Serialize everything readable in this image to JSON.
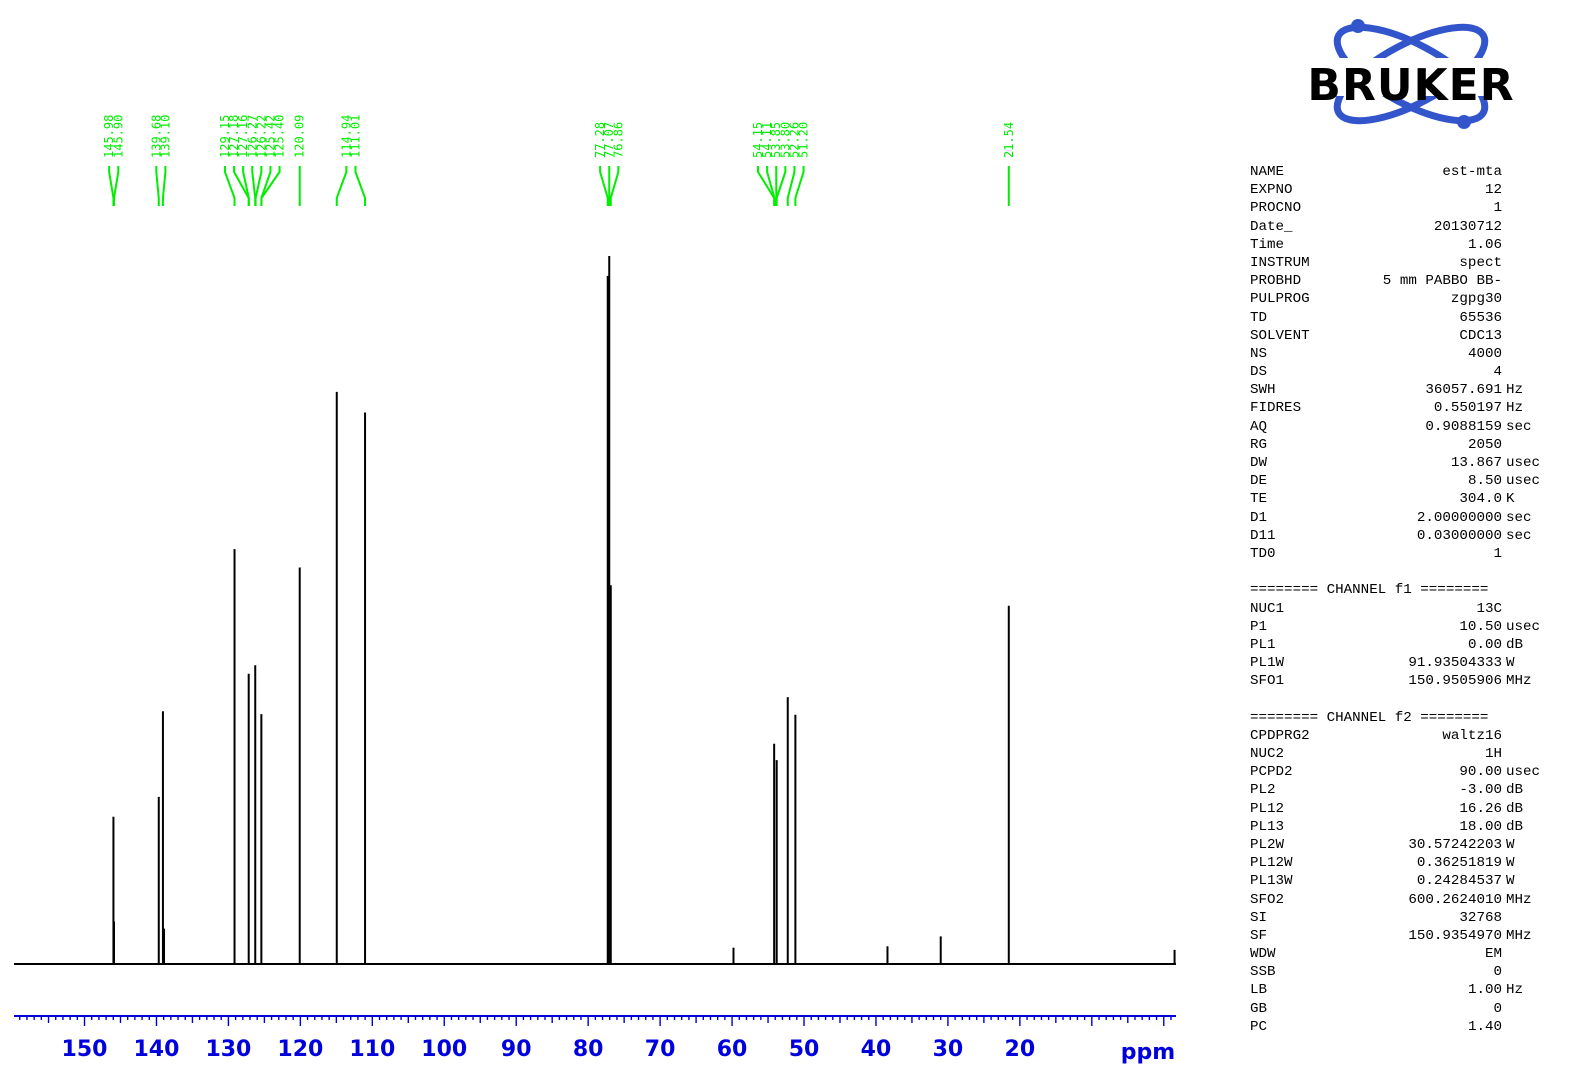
{
  "logo": {
    "text": "BRUKER",
    "colors": {
      "orbit": "#3355cc",
      "text": "#000000"
    },
    "icon": "atom-orbit-logo"
  },
  "parameters": {
    "acquisition": [
      {
        "name": "NAME",
        "value": "est-mta",
        "unit": ""
      },
      {
        "name": "EXPNO",
        "value": "12",
        "unit": ""
      },
      {
        "name": "PROCNO",
        "value": "1",
        "unit": ""
      },
      {
        "name": "Date_",
        "value": "20130712",
        "unit": ""
      },
      {
        "name": "Time",
        "value": "1.06",
        "unit": ""
      },
      {
        "name": "INSTRUM",
        "value": "spect",
        "unit": ""
      },
      {
        "name": "PROBHD",
        "value": "5 mm PABBO BB-",
        "unit": ""
      },
      {
        "name": "PULPROG",
        "value": "zgpg30",
        "unit": ""
      },
      {
        "name": "TD",
        "value": "65536",
        "unit": ""
      },
      {
        "name": "SOLVENT",
        "value": "CDC13",
        "unit": ""
      },
      {
        "name": "NS",
        "value": "4000",
        "unit": ""
      },
      {
        "name": "DS",
        "value": "4",
        "unit": ""
      },
      {
        "name": "SWH",
        "value": "36057.691",
        "unit": "Hz"
      },
      {
        "name": "FIDRES",
        "value": "0.550197",
        "unit": "Hz"
      },
      {
        "name": "AQ",
        "value": "0.9088159",
        "unit": "sec"
      },
      {
        "name": "RG",
        "value": "2050",
        "unit": ""
      },
      {
        "name": "DW",
        "value": "13.867",
        "unit": "usec"
      },
      {
        "name": "DE",
        "value": "8.50",
        "unit": "usec"
      },
      {
        "name": "TE",
        "value": "304.0",
        "unit": "K"
      },
      {
        "name": "D1",
        "value": "2.00000000",
        "unit": "sec"
      },
      {
        "name": "D11",
        "value": "0.03000000",
        "unit": "sec"
      },
      {
        "name": "TD0",
        "value": "1",
        "unit": ""
      }
    ],
    "channel_f1_header": "======== CHANNEL f1 ========",
    "channel_f1": [
      {
        "name": "NUC1",
        "value": "13C",
        "unit": ""
      },
      {
        "name": "P1",
        "value": "10.50",
        "unit": "usec"
      },
      {
        "name": "PL1",
        "value": "0.00",
        "unit": "dB"
      },
      {
        "name": "PL1W",
        "value": "91.93504333",
        "unit": "W"
      },
      {
        "name": "SFO1",
        "value": "150.9505906",
        "unit": "MHz"
      }
    ],
    "channel_f2_header": "======== CHANNEL f2 ========",
    "channel_f2": [
      {
        "name": "CPDPRG2",
        "value": "waltz16",
        "unit": ""
      },
      {
        "name": "NUC2",
        "value": "1H",
        "unit": ""
      },
      {
        "name": "PCPD2",
        "value": "90.00",
        "unit": "usec"
      },
      {
        "name": "PL2",
        "value": "-3.00",
        "unit": "dB"
      },
      {
        "name": "PL12",
        "value": "16.26",
        "unit": "dB"
      },
      {
        "name": "PL13",
        "value": "18.00",
        "unit": "dB"
      },
      {
        "name": "PL2W",
        "value": "30.57242203",
        "unit": "W"
      },
      {
        "name": "PL12W",
        "value": "0.36251819",
        "unit": "W"
      },
      {
        "name": "PL13W",
        "value": "0.24284537",
        "unit": "W"
      },
      {
        "name": "SFO2",
        "value": "600.2624010",
        "unit": "MHz"
      },
      {
        "name": "SI",
        "value": "32768",
        "unit": ""
      },
      {
        "name": "SF",
        "value": "150.9354970",
        "unit": "MHz"
      },
      {
        "name": "WDW",
        "value": "EM",
        "unit": ""
      },
      {
        "name": "SSB",
        "value": "0",
        "unit": ""
      },
      {
        "name": "LB",
        "value": "1.00",
        "unit": "Hz"
      },
      {
        "name": "GB",
        "value": "0",
        "unit": ""
      },
      {
        "name": "PC",
        "value": "1.40",
        "unit": ""
      }
    ]
  },
  "chart_data": {
    "type": "line",
    "xlabel": "ppm",
    "xlim": [
      159.8,
      -1.7
    ],
    "ylim": [
      0,
      100
    ],
    "x_ticks": [
      150,
      140,
      130,
      120,
      110,
      100,
      90,
      80,
      70,
      60,
      50,
      40,
      30,
      20
    ],
    "grid": false,
    "colors": {
      "trace": "#000000",
      "peak_labels": "#00ee00",
      "axis": "#0000dd"
    },
    "peak_labels": [
      "145.98",
      "145.90",
      "139.68",
      "139.10",
      "129.15",
      "127.18",
      "127.16",
      "126.27",
      "126.22",
      "125.42",
      "125.40",
      "120.09",
      "114.94",
      "111.01",
      "77.28",
      "77.07",
      "76.86",
      "54.15",
      "54.11",
      "53.85",
      "53.80",
      "52.26",
      "51.20",
      "21.54"
    ],
    "peaks": [
      {
        "x": 145.98,
        "y": 20.8
      },
      {
        "x": 145.9,
        "y": 6.0
      },
      {
        "x": 139.68,
        "y": 23.6
      },
      {
        "x": 139.1,
        "y": 35.7
      },
      {
        "x": 138.95,
        "y": 5.0
      },
      {
        "x": 129.15,
        "y": 58.6
      },
      {
        "x": 127.18,
        "y": 41.0
      },
      {
        "x": 126.27,
        "y": 42.2
      },
      {
        "x": 125.42,
        "y": 35.3
      },
      {
        "x": 120.09,
        "y": 56.0
      },
      {
        "x": 114.94,
        "y": 80.8
      },
      {
        "x": 111.01,
        "y": 77.9
      },
      {
        "x": 77.28,
        "y": 97.2
      },
      {
        "x": 77.07,
        "y": 100.0
      },
      {
        "x": 76.86,
        "y": 53.5
      },
      {
        "x": 59.8,
        "y": 2.3
      },
      {
        "x": 54.15,
        "y": 31.1
      },
      {
        "x": 53.8,
        "y": 28.8
      },
      {
        "x": 52.26,
        "y": 37.7
      },
      {
        "x": 51.2,
        "y": 35.2
      },
      {
        "x": 38.4,
        "y": 2.5
      },
      {
        "x": 31.0,
        "y": 3.9
      },
      {
        "x": 21.54,
        "y": 50.6
      },
      {
        "x": -1.5,
        "y": 2.0
      }
    ]
  }
}
